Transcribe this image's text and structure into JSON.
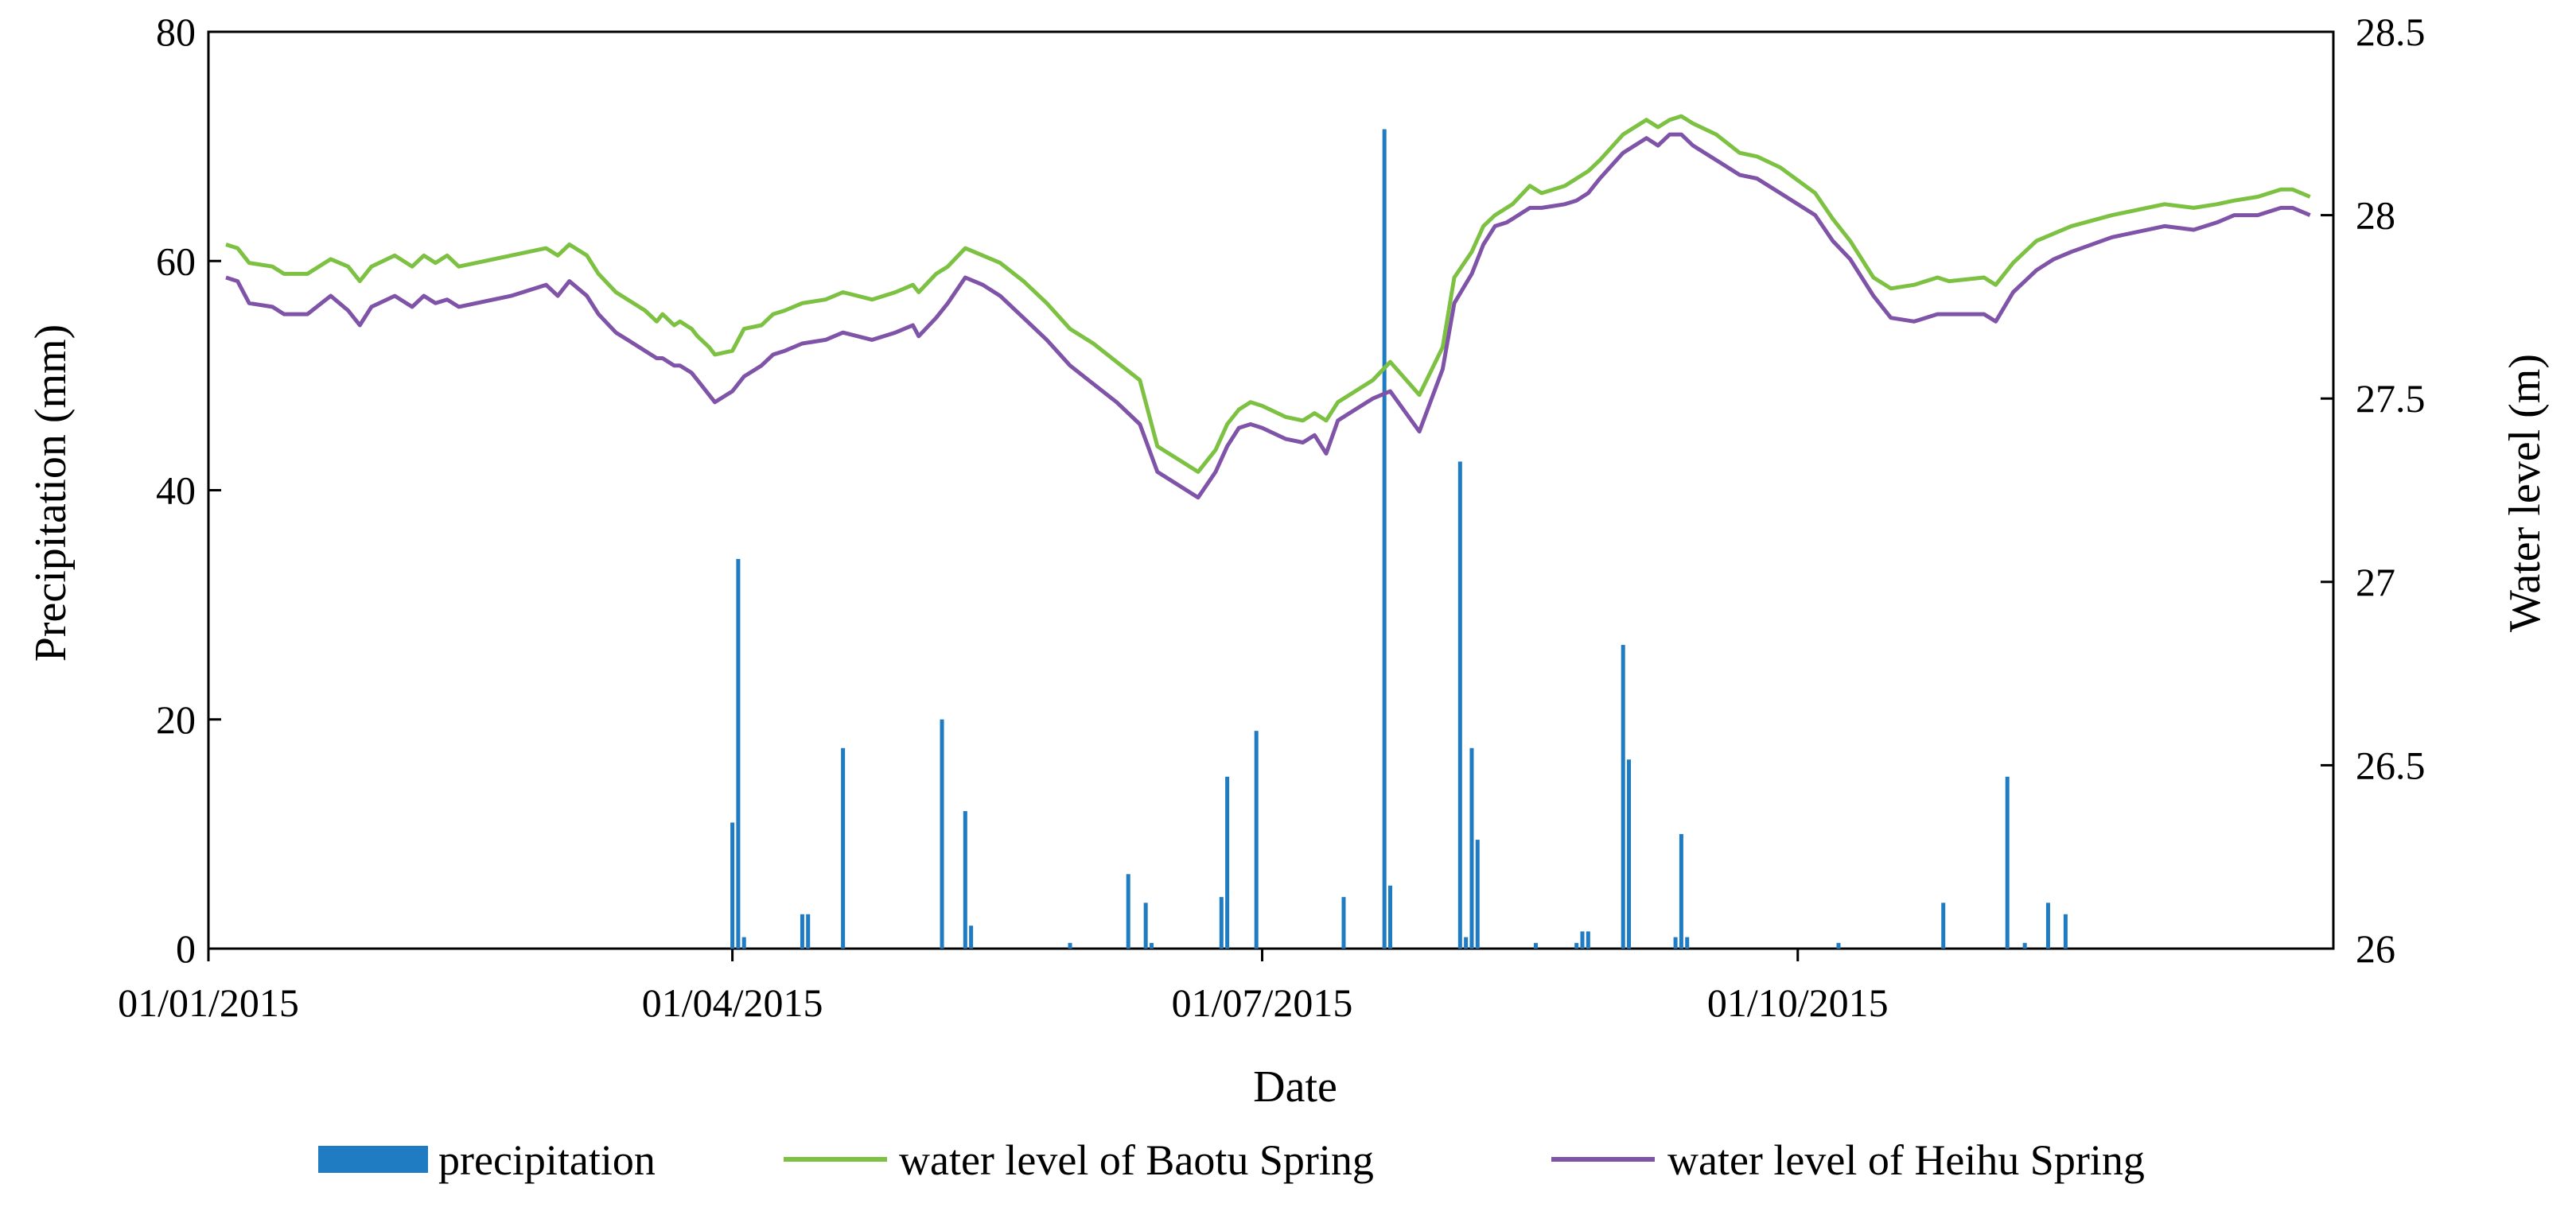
{
  "chart_data": {
    "type": "bar+line",
    "xlabel": "Date",
    "ylabel_left": "Precipitation (mm)",
    "ylabel_right": "Water level (m)",
    "x_range_days": [
      0,
      365
    ],
    "x_ticks": [
      {
        "day": 0,
        "label": "01/01/2015"
      },
      {
        "day": 90,
        "label": "01/04/2015"
      },
      {
        "day": 181,
        "label": "01/07/2015"
      },
      {
        "day": 273,
        "label": "01/10/2015"
      }
    ],
    "ylim_left": [
      0,
      80
    ],
    "yticks_left": [
      "0",
      "20",
      "40",
      "60",
      "80"
    ],
    "ylim_right": [
      26,
      28.5
    ],
    "yticks_right": [
      "26",
      "26.5",
      "27",
      "27.5",
      "28",
      "28.5"
    ],
    "colors": {
      "precipitation": "#1f7bc2",
      "baotu": "#7dc142",
      "heihu": "#7f53a8",
      "axis": "#000000"
    },
    "legend": {
      "position": "bottom",
      "items": [
        {
          "label": "precipitation",
          "kind": "bar"
        },
        {
          "label": "water level of Baotu Spring",
          "kind": "line"
        },
        {
          "label": "water level of Heihu Spring",
          "kind": "line"
        }
      ]
    },
    "precipitation": [
      {
        "day": 90,
        "mm": 11
      },
      {
        "day": 91,
        "mm": 34
      },
      {
        "day": 92,
        "mm": 1
      },
      {
        "day": 102,
        "mm": 3
      },
      {
        "day": 103,
        "mm": 3
      },
      {
        "day": 109,
        "mm": 17.5
      },
      {
        "day": 126,
        "mm": 20
      },
      {
        "day": 130,
        "mm": 12
      },
      {
        "day": 131,
        "mm": 2
      },
      {
        "day": 148,
        "mm": 0.5
      },
      {
        "day": 158,
        "mm": 6.5
      },
      {
        "day": 161,
        "mm": 4
      },
      {
        "day": 162,
        "mm": 0.5
      },
      {
        "day": 174,
        "mm": 4.5
      },
      {
        "day": 175,
        "mm": 15
      },
      {
        "day": 180,
        "mm": 19
      },
      {
        "day": 195,
        "mm": 4.5
      },
      {
        "day": 202,
        "mm": 71.5
      },
      {
        "day": 203,
        "mm": 5.5
      },
      {
        "day": 215,
        "mm": 42.5
      },
      {
        "day": 216,
        "mm": 1
      },
      {
        "day": 217,
        "mm": 17.5
      },
      {
        "day": 218,
        "mm": 9.5
      },
      {
        "day": 228,
        "mm": 0.5
      },
      {
        "day": 235,
        "mm": 0.5
      },
      {
        "day": 236,
        "mm": 1.5
      },
      {
        "day": 237,
        "mm": 1.5
      },
      {
        "day": 243,
        "mm": 26.5
      },
      {
        "day": 244,
        "mm": 16.5
      },
      {
        "day": 252,
        "mm": 1
      },
      {
        "day": 253,
        "mm": 10
      },
      {
        "day": 254,
        "mm": 1
      },
      {
        "day": 280,
        "mm": 0.5
      },
      {
        "day": 298,
        "mm": 4
      },
      {
        "day": 309,
        "mm": 15
      },
      {
        "day": 312,
        "mm": 0.5
      },
      {
        "day": 316,
        "mm": 4
      },
      {
        "day": 319,
        "mm": 3
      }
    ],
    "series": [
      {
        "name": "water level of Baotu Spring",
        "points": [
          [
            3,
            27.92
          ],
          [
            5,
            27.91
          ],
          [
            7,
            27.87
          ],
          [
            11,
            27.86
          ],
          [
            13,
            27.84
          ],
          [
            17,
            27.84
          ],
          [
            21,
            27.88
          ],
          [
            24,
            27.86
          ],
          [
            26,
            27.82
          ],
          [
            28,
            27.86
          ],
          [
            32,
            27.89
          ],
          [
            35,
            27.86
          ],
          [
            37,
            27.89
          ],
          [
            39,
            27.87
          ],
          [
            41,
            27.89
          ],
          [
            43,
            27.86
          ],
          [
            52,
            27.89
          ],
          [
            58,
            27.91
          ],
          [
            60,
            27.89
          ],
          [
            62,
            27.92
          ],
          [
            65,
            27.89
          ],
          [
            67,
            27.84
          ],
          [
            70,
            27.79
          ],
          [
            72,
            27.77
          ],
          [
            75,
            27.74
          ],
          [
            77,
            27.71
          ],
          [
            78,
            27.73
          ],
          [
            80,
            27.7
          ],
          [
            81,
            27.71
          ],
          [
            83,
            27.69
          ],
          [
            84,
            27.67
          ],
          [
            86,
            27.64
          ],
          [
            87,
            27.62
          ],
          [
            90,
            27.63
          ],
          [
            92,
            27.69
          ],
          [
            95,
            27.7
          ],
          [
            97,
            27.73
          ],
          [
            99,
            27.74
          ],
          [
            102,
            27.76
          ],
          [
            106,
            27.77
          ],
          [
            109,
            27.79
          ],
          [
            114,
            27.77
          ],
          [
            118,
            27.79
          ],
          [
            121,
            27.81
          ],
          [
            122,
            27.79
          ],
          [
            125,
            27.84
          ],
          [
            127,
            27.86
          ],
          [
            130,
            27.91
          ],
          [
            133,
            27.89
          ],
          [
            136,
            27.87
          ],
          [
            140,
            27.82
          ],
          [
            144,
            27.76
          ],
          [
            148,
            27.69
          ],
          [
            152,
            27.65
          ],
          [
            156,
            27.6
          ],
          [
            160,
            27.55
          ],
          [
            163,
            27.37
          ],
          [
            167,
            27.33
          ],
          [
            170,
            27.3
          ],
          [
            173,
            27.36
          ],
          [
            175,
            27.43
          ],
          [
            177,
            27.47
          ],
          [
            179,
            27.49
          ],
          [
            181,
            27.48
          ],
          [
            185,
            27.45
          ],
          [
            188,
            27.44
          ],
          [
            190,
            27.46
          ],
          [
            192,
            27.44
          ],
          [
            194,
            27.49
          ],
          [
            197,
            27.52
          ],
          [
            200,
            27.55
          ],
          [
            203,
            27.6
          ],
          [
            208,
            27.51
          ],
          [
            212,
            27.64
          ],
          [
            214,
            27.83
          ],
          [
            217,
            27.9
          ],
          [
            219,
            27.97
          ],
          [
            221,
            28.0
          ],
          [
            223,
            28.02
          ],
          [
            224,
            28.03
          ],
          [
            227,
            28.08
          ],
          [
            229,
            28.06
          ],
          [
            233,
            28.08
          ],
          [
            235,
            28.1
          ],
          [
            237,
            28.12
          ],
          [
            239,
            28.15
          ],
          [
            243,
            28.22
          ],
          [
            247,
            28.26
          ],
          [
            249,
            28.24
          ],
          [
            251,
            28.26
          ],
          [
            253,
            28.27
          ],
          [
            255,
            28.25
          ],
          [
            259,
            28.22
          ],
          [
            263,
            28.17
          ],
          [
            266,
            28.16
          ],
          [
            270,
            28.13
          ],
          [
            276,
            28.06
          ],
          [
            279,
            27.99
          ],
          [
            282,
            27.93
          ],
          [
            286,
            27.83
          ],
          [
            289,
            27.8
          ],
          [
            293,
            27.81
          ],
          [
            297,
            27.83
          ],
          [
            299,
            27.82
          ],
          [
            305,
            27.83
          ],
          [
            307,
            27.81
          ],
          [
            310,
            27.87
          ],
          [
            314,
            27.93
          ],
          [
            317,
            27.95
          ],
          [
            320,
            27.97
          ],
          [
            327,
            28.0
          ],
          [
            336,
            28.03
          ],
          [
            341,
            28.02
          ],
          [
            345,
            28.03
          ],
          [
            348,
            28.04
          ],
          [
            352,
            28.05
          ],
          [
            356,
            28.07
          ],
          [
            358,
            28.07
          ],
          [
            361,
            28.05
          ]
        ]
      },
      {
        "name": "water level of Heihu Spring",
        "points": [
          [
            3,
            27.83
          ],
          [
            5,
            27.82
          ],
          [
            7,
            27.76
          ],
          [
            11,
            27.75
          ],
          [
            13,
            27.73
          ],
          [
            17,
            27.73
          ],
          [
            21,
            27.78
          ],
          [
            24,
            27.74
          ],
          [
            26,
            27.7
          ],
          [
            28,
            27.75
          ],
          [
            32,
            27.78
          ],
          [
            35,
            27.75
          ],
          [
            37,
            27.78
          ],
          [
            39,
            27.76
          ],
          [
            41,
            27.77
          ],
          [
            43,
            27.75
          ],
          [
            52,
            27.78
          ],
          [
            58,
            27.81
          ],
          [
            60,
            27.78
          ],
          [
            62,
            27.82
          ],
          [
            65,
            27.78
          ],
          [
            67,
            27.73
          ],
          [
            70,
            27.68
          ],
          [
            72,
            27.66
          ],
          [
            75,
            27.63
          ],
          [
            77,
            27.61
          ],
          [
            78,
            27.61
          ],
          [
            80,
            27.59
          ],
          [
            81,
            27.59
          ],
          [
            83,
            27.57
          ],
          [
            84,
            27.55
          ],
          [
            86,
            27.51
          ],
          [
            87,
            27.49
          ],
          [
            90,
            27.52
          ],
          [
            92,
            27.56
          ],
          [
            95,
            27.59
          ],
          [
            97,
            27.62
          ],
          [
            99,
            27.63
          ],
          [
            102,
            27.65
          ],
          [
            106,
            27.66
          ],
          [
            109,
            27.68
          ],
          [
            114,
            27.66
          ],
          [
            118,
            27.68
          ],
          [
            121,
            27.7
          ],
          [
            122,
            27.67
          ],
          [
            125,
            27.72
          ],
          [
            127,
            27.76
          ],
          [
            130,
            27.83
          ],
          [
            133,
            27.81
          ],
          [
            136,
            27.78
          ],
          [
            140,
            27.72
          ],
          [
            144,
            27.66
          ],
          [
            148,
            27.59
          ],
          [
            152,
            27.54
          ],
          [
            156,
            27.49
          ],
          [
            160,
            27.43
          ],
          [
            163,
            27.3
          ],
          [
            167,
            27.26
          ],
          [
            170,
            27.23
          ],
          [
            173,
            27.3
          ],
          [
            175,
            27.37
          ],
          [
            177,
            27.42
          ],
          [
            179,
            27.43
          ],
          [
            181,
            27.42
          ],
          [
            185,
            27.39
          ],
          [
            188,
            27.38
          ],
          [
            190,
            27.4
          ],
          [
            192,
            27.35
          ],
          [
            194,
            27.44
          ],
          [
            197,
            27.47
          ],
          [
            200,
            27.5
          ],
          [
            203,
            27.52
          ],
          [
            208,
            27.41
          ],
          [
            212,
            27.58
          ],
          [
            214,
            27.76
          ],
          [
            217,
            27.84
          ],
          [
            219,
            27.92
          ],
          [
            221,
            27.97
          ],
          [
            223,
            27.98
          ],
          [
            224,
            27.99
          ],
          [
            227,
            28.02
          ],
          [
            229,
            28.02
          ],
          [
            233,
            28.03
          ],
          [
            235,
            28.04
          ],
          [
            237,
            28.06
          ],
          [
            239,
            28.1
          ],
          [
            243,
            28.17
          ],
          [
            247,
            28.21
          ],
          [
            249,
            28.19
          ],
          [
            251,
            28.22
          ],
          [
            253,
            28.22
          ],
          [
            255,
            28.19
          ],
          [
            259,
            28.15
          ],
          [
            263,
            28.11
          ],
          [
            266,
            28.1
          ],
          [
            270,
            28.06
          ],
          [
            276,
            28.0
          ],
          [
            279,
            27.93
          ],
          [
            282,
            27.88
          ],
          [
            286,
            27.78
          ],
          [
            289,
            27.72
          ],
          [
            293,
            27.71
          ],
          [
            297,
            27.73
          ],
          [
            299,
            27.73
          ],
          [
            305,
            27.73
          ],
          [
            307,
            27.71
          ],
          [
            310,
            27.79
          ],
          [
            314,
            27.85
          ],
          [
            317,
            27.88
          ],
          [
            320,
            27.9
          ],
          [
            327,
            27.94
          ],
          [
            336,
            27.97
          ],
          [
            341,
            27.96
          ],
          [
            345,
            27.98
          ],
          [
            348,
            28.0
          ],
          [
            352,
            28.0
          ],
          [
            356,
            28.02
          ],
          [
            358,
            28.02
          ],
          [
            361,
            28.0
          ]
        ]
      }
    ]
  }
}
